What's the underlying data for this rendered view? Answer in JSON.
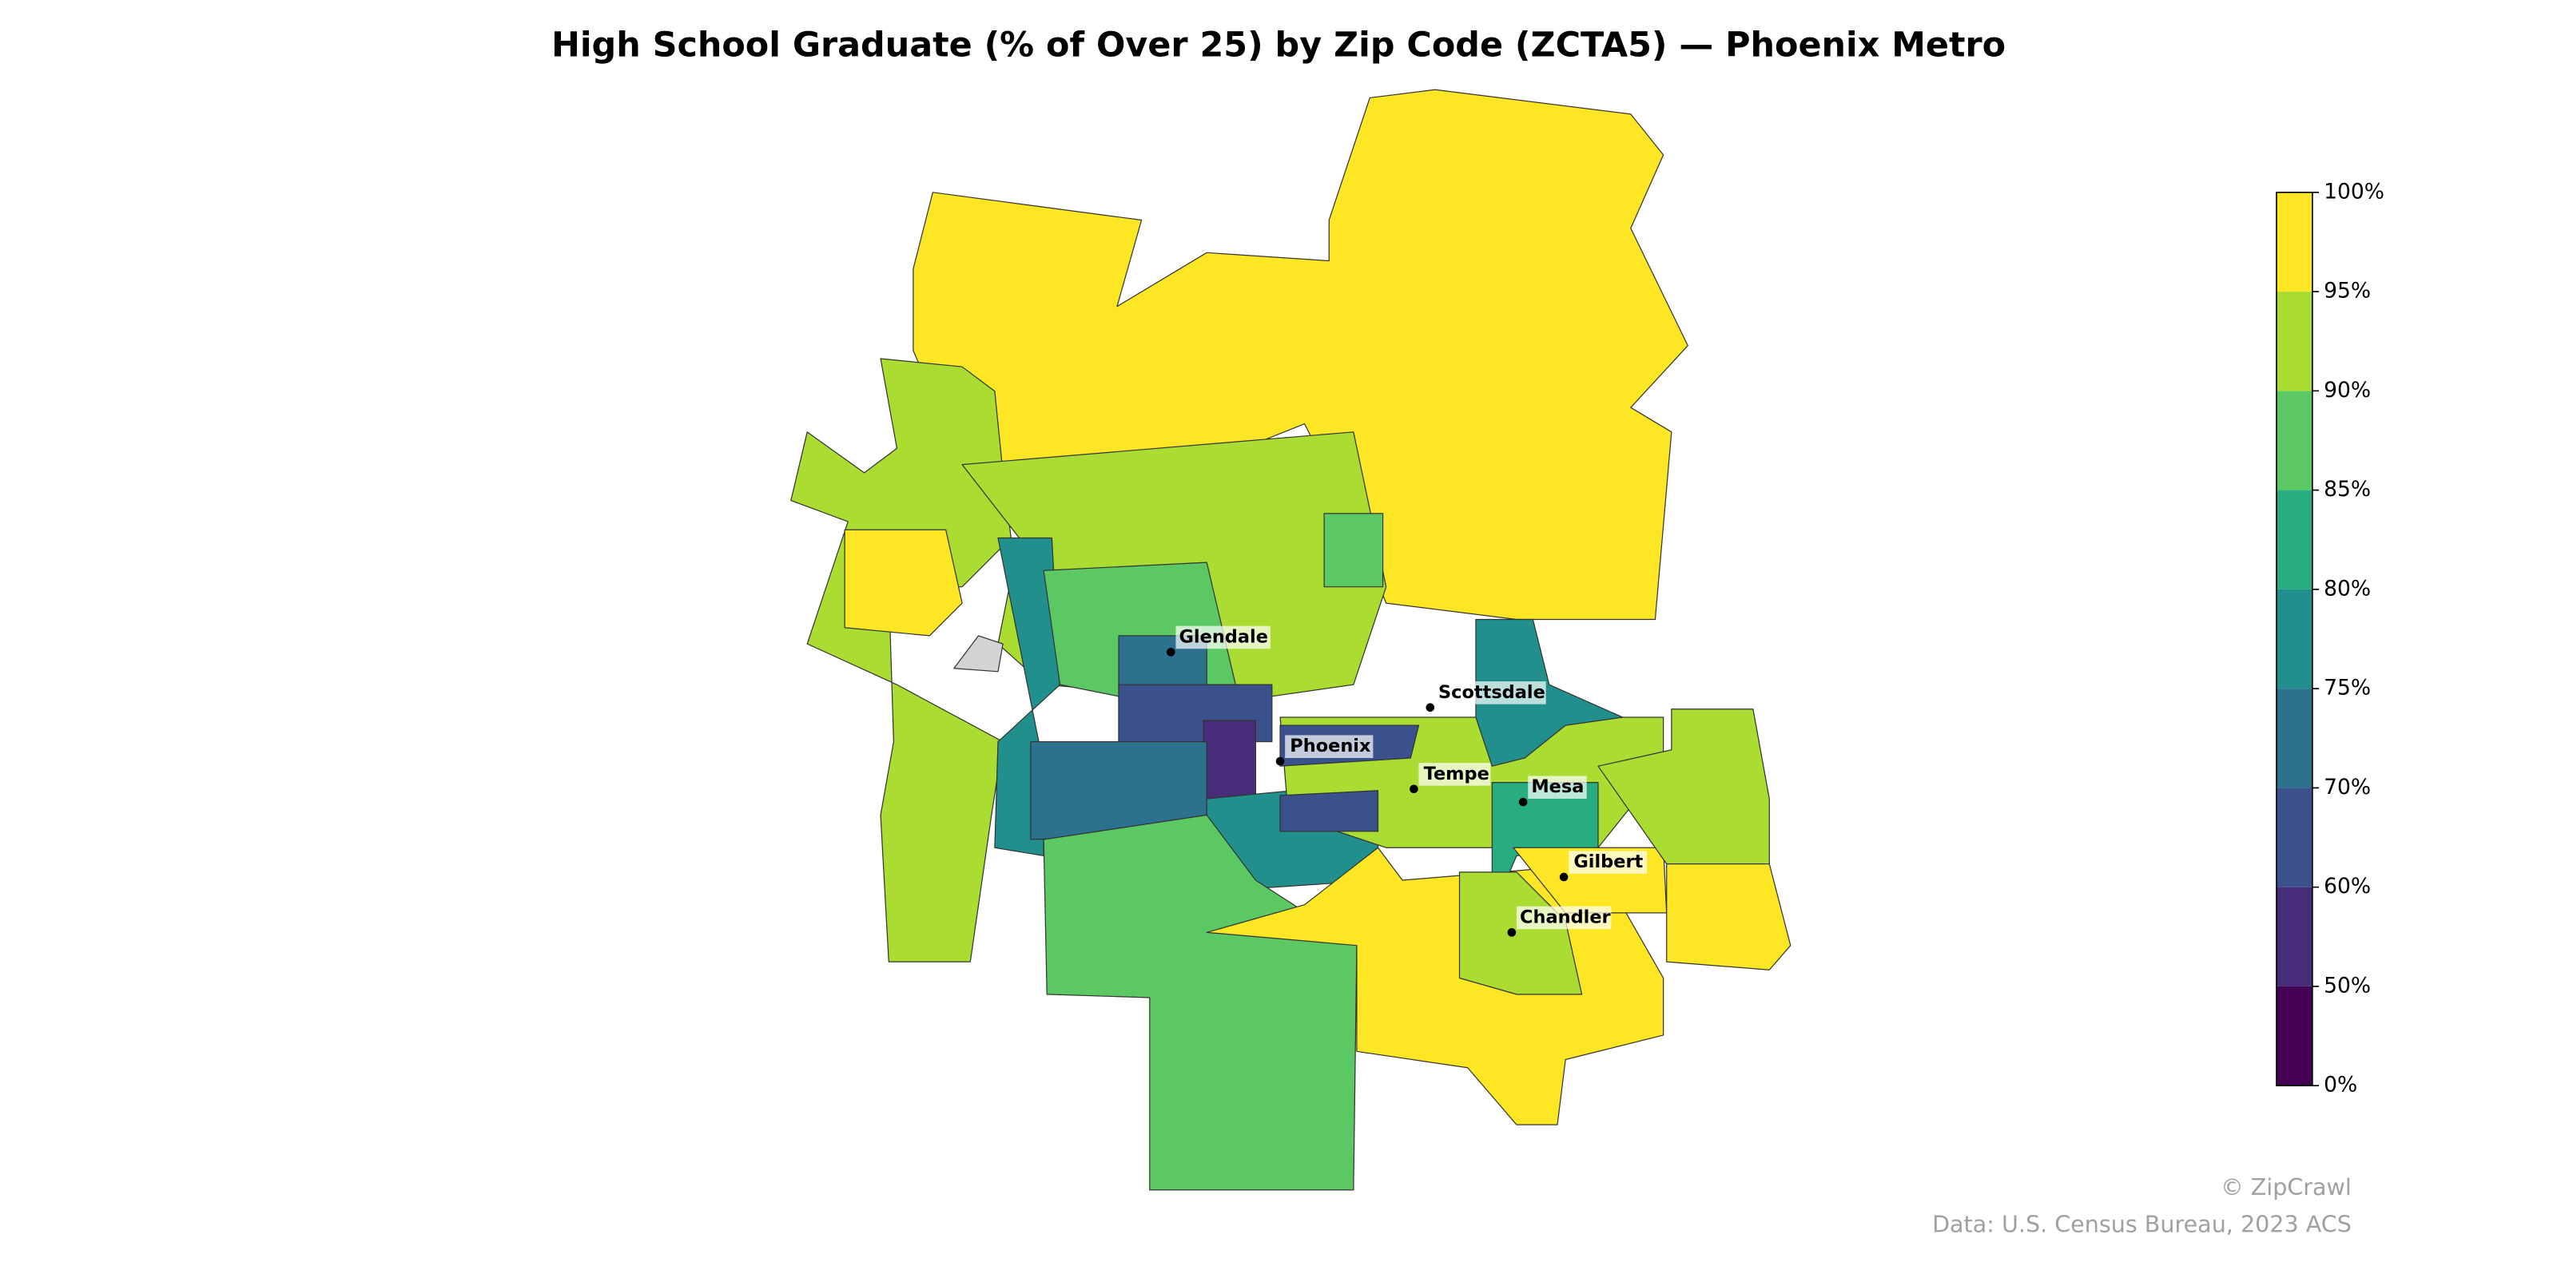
{
  "chart_data": {
    "type": "choropleth",
    "title": "High School Graduate (% of Over 25) by Zip Code (ZCTA5) — Phoenix Metro",
    "region_values": [
      97,
      93,
      97,
      92,
      78,
      87,
      72,
      64,
      57,
      72,
      79,
      87,
      97,
      92,
      77,
      80,
      97,
      92,
      97,
      91,
      69,
      65,
      86,
      null
    ],
    "missing_color": "#d3d3d3",
    "colorbar": {
      "ticks": [
        {
          "value": 0,
          "label": "0%"
        },
        {
          "value": 50,
          "label": "50%"
        },
        {
          "value": 60,
          "label": "60%"
        },
        {
          "value": 70,
          "label": "70%"
        },
        {
          "value": 75,
          "label": "75%"
        },
        {
          "value": 80,
          "label": "80%"
        },
        {
          "value": 85,
          "label": "85%"
        },
        {
          "value": 90,
          "label": "90%"
        },
        {
          "value": 95,
          "label": "95%"
        },
        {
          "value": 100,
          "label": "100%"
        }
      ],
      "colors": [
        "#440154",
        "#472c7a",
        "#3b518b",
        "#2c718e",
        "#21908d",
        "#27ad81",
        "#5cc863",
        "#aadc32",
        "#fde725"
      ]
    },
    "cities": [
      "Glendale",
      "Scottsdale",
      "Phoenix",
      "Tempe",
      "Mesa",
      "Gilbert",
      "Chandler"
    ],
    "credits": [
      "© ZipCrawl",
      "Data: U.S. Census Bureau, 2023 ACS"
    ]
  }
}
